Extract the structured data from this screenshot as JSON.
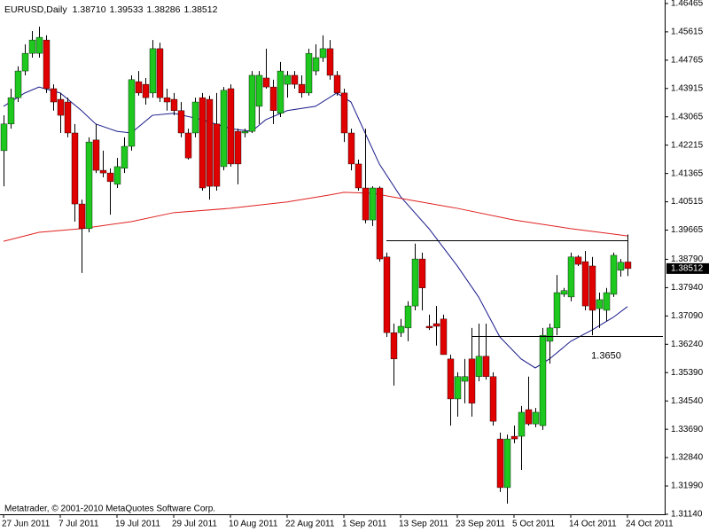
{
  "chart_data": {
    "type": "candlestick",
    "title": "EURUSD,Daily",
    "quote": [
      {
        "value": 1.3871,
        "label": "1.38710"
      },
      1.39533,
      1.38286,
      1.38512
    ],
    "footer": "Metatrader, © 2001-2010 MetaQuotes Software Corp.",
    "categories": [
      "27 Jun 2011",
      null,
      null,
      null,
      null,
      null,
      null,
      null,
      "7 Jul 2011",
      null,
      null,
      null,
      null,
      null,
      null,
      null,
      "19 Jul 2011",
      null,
      null,
      null,
      null,
      null,
      null,
      null,
      "29 Jul 2011",
      null,
      null,
      null,
      null,
      null,
      null,
      null,
      "10 Aug 2011",
      null,
      null,
      null,
      null,
      null,
      null,
      null,
      "22 Aug 2011",
      null,
      null,
      null,
      null,
      null,
      null,
      null,
      "1 Sep 2011",
      null,
      null,
      null,
      null,
      null,
      null,
      null,
      "13 Sep 2011",
      null,
      null,
      null,
      null,
      null,
      null,
      null,
      "23 Sep 2011",
      null,
      null,
      null,
      null,
      null,
      null,
      null,
      "5 Oct 2011",
      null,
      null,
      null,
      null,
      null,
      null,
      null,
      "14 Oct 2011",
      null,
      null,
      null,
      null,
      null,
      null,
      null,
      "24 Oct 2011"
    ],
    "open": [
      1.4205,
      1.4285,
      1.4364,
      1.4444,
      1.4497,
      1.4497,
      1.4537,
      1.4391,
      1.4359,
      1.4351,
      1.4258,
      1.4045,
      1.3971,
      1.4237,
      1.4146,
      1.4138,
      1.4104,
      1.4152,
      1.4218,
      1.4412,
      1.4404,
      1.4378,
      1.4511,
      1.4364,
      1.4359,
      1.4325,
      1.4258,
      1.4258,
      1.4364,
      1.4359,
      1.4285,
      1.4157,
      1.4391,
      1.4263,
      1.4258,
      1.4263,
      1.4338,
      1.4423,
      1.4396,
      1.4317,
      1.4404,
      1.4431,
      1.4404,
      1.4378,
      1.4444,
      1.4484,
      1.4511,
      1.4431,
      1.4378,
      1.4258,
      1.4165,
      1.4093,
      1.3997,
      1.4093,
      1.3886,
      1.3659,
      1.3659,
      1.3673,
      1.3739,
      1.388,
      1.3678,
      1.3686,
      1.37,
      1.358,
      1.346,
      1.3513,
      1.358,
      1.3527,
      1.3588,
      1.3527,
      1.334,
      1.3194,
      1.3348,
      1.3348,
      1.3428,
      1.3385,
      1.338,
      1.3633,
      1.3673,
      1.3774,
      1.3766,
      1.3886,
      1.3872,
      1.3859,
      1.3731,
      1.3726,
      1.3774,
      1.3846,
      1.3871
    ],
    "high": [
      1.4311,
      1.4391,
      1.4458,
      1.4524,
      1.4564,
      1.4577,
      1.4551,
      1.4404,
      1.4378,
      1.4364,
      1.4285,
      1.4058,
      1.4245,
      1.4285,
      1.4205,
      1.4152,
      1.4183,
      1.4245,
      1.4431,
      1.4444,
      1.4423,
      1.4537,
      1.4529,
      1.4391,
      1.4378,
      1.4351,
      1.4271,
      1.4364,
      1.4378,
      1.437,
      1.4378,
      1.4396,
      1.4404,
      1.4271,
      1.4271,
      1.4444,
      1.4444,
      1.4511,
      1.4418,
      1.4471,
      1.4444,
      1.4444,
      1.4431,
      1.4511,
      1.4524,
      1.4551,
      1.4537,
      1.4444,
      1.4391,
      1.4271,
      1.4178,
      1.4271,
      1.4098,
      1.4098,
      1.3899,
      1.3686,
      1.37,
      1.3753,
      1.3926,
      1.3899,
      1.3713,
      1.3739,
      1.3713,
      1.3593,
      1.354,
      1.358,
      1.3673,
      1.3686,
      1.3686,
      1.354,
      1.3359,
      1.3353,
      1.338,
      1.3439,
      1.3527,
      1.3433,
      1.3673,
      1.3686,
      1.3832,
      1.3793,
      1.3899,
      1.3891,
      1.3904,
      1.3886,
      1.3779,
      1.3793,
      1.3899,
      1.388,
      1.39533
    ],
    "low": [
      1.4098,
      1.4271,
      1.4351,
      1.4431,
      1.4484,
      1.4484,
      1.4378,
      1.4325,
      1.4258,
      1.4245,
      1.3992,
      1.3838,
      1.396,
      1.4138,
      1.4125,
      1.4013,
      1.4093,
      1.4138,
      1.4205,
      1.437,
      1.4343,
      1.4364,
      1.4351,
      1.4325,
      1.4311,
      1.4245,
      1.4178,
      1.4245,
      1.4085,
      1.4058,
      1.4085,
      1.4146,
      1.4157,
      1.4104,
      1.4245,
      1.4258,
      1.4285,
      1.4391,
      1.4285,
      1.4306,
      1.4364,
      1.4391,
      1.4364,
      1.437,
      1.4431,
      1.4471,
      1.4418,
      1.437,
      1.4231,
      1.4146,
      1.4085,
      1.3987,
      1.3979,
      1.3872,
      1.3646,
      1.35,
      1.3646,
      1.3633,
      1.3726,
      1.3726,
      1.3667,
      1.362,
      1.3593,
      1.338,
      1.3407,
      1.3447,
      1.3407,
      1.3513,
      1.3518,
      1.338,
      1.3181,
      1.3146,
      1.3327,
      1.3247,
      1.338,
      1.3375,
      1.3367,
      1.3566,
      1.3651,
      1.3766,
      1.3753,
      1.3859,
      1.3726,
      1.3651,
      1.3673,
      1.3694,
      1.3766,
      1.3827,
      1.38286
    ],
    "close": [
      1.4285,
      1.4364,
      1.4444,
      1.4497,
      1.4537,
      1.4545,
      1.4391,
      1.4351,
      1.4311,
      1.4258,
      1.4045,
      1.3971,
      1.4231,
      1.4146,
      1.4138,
      1.4112,
      1.4157,
      1.4218,
      1.4418,
      1.4378,
      1.4364,
      1.4511,
      1.4364,
      1.4351,
      1.4325,
      1.4258,
      1.4183,
      1.4351,
      1.4093,
      1.4098,
      1.4098,
      1.4386,
      1.4165,
      1.4165,
      1.4263,
      1.4431,
      1.4431,
      1.4396,
      1.4325,
      1.4444,
      1.4431,
      1.4404,
      1.4378,
      1.4497,
      1.4484,
      1.4511,
      1.4431,
      1.4378,
      1.4258,
      1.4165,
      1.4093,
      1.3997,
      1.4093,
      1.388,
      1.3659,
      1.358,
      1.3678,
      1.3739,
      1.388,
      1.3793,
      1.3673,
      1.3678,
      1.3593,
      1.346,
      1.3527,
      1.3527,
      1.3447,
      1.3588,
      1.3527,
      1.3393,
      1.3194,
      1.334,
      1.334,
      1.342,
      1.3385,
      1.342,
      1.3651,
      1.3673,
      1.3779,
      1.3785,
      1.3886,
      1.3864,
      1.3739,
      1.3726,
      1.3758,
      1.3779,
      1.3891,
      1.387,
      1.38512
    ],
    "up_color": "#1ec81e",
    "down_color": "#e00000",
    "moving_averages": [
      {
        "color": "#1a1a8c",
        "x": [
          0,
          3,
          5,
          8,
          11,
          13,
          16,
          18,
          21,
          24,
          28,
          32,
          35,
          37,
          40,
          44,
          47,
          49,
          51,
          53,
          56,
          60,
          64,
          67,
          70,
          73,
          75,
          77,
          80,
          83,
          86,
          88
        ],
        "values": [
          1.4338,
          1.4378,
          1.4396,
          1.4378,
          1.4325,
          1.4285,
          1.4263,
          1.4258,
          1.4311,
          1.4317,
          1.4298,
          1.4271,
          1.4263,
          1.4298,
          1.4325,
          1.4338,
          1.4378,
          1.4351,
          1.4258,
          1.4165,
          1.4067,
          1.3971,
          1.3859,
          1.3766,
          1.3646,
          1.358,
          1.3553,
          1.358,
          1.3633,
          1.3667,
          1.3705,
          1.3737
        ]
      },
      {
        "color": "#e02020",
        "x": [
          0,
          5,
          11,
          18,
          24,
          32,
          40,
          46,
          48,
          52,
          57,
          64,
          72,
          80,
          87,
          88
        ],
        "values": [
          1.3933,
          1.396,
          1.3971,
          1.3992,
          1.4019,
          1.4032,
          1.4051,
          1.4072,
          1.408,
          1.4077,
          1.4058,
          1.4032,
          1.3997,
          1.3971,
          1.3952,
          1.3949
        ]
      }
    ],
    "levels": [
      {
        "value": 1.3936,
        "x": [
          54,
          88
        ],
        "color": "#000000"
      },
      {
        "value": 1.365,
        "label": "1.3650",
        "x": [
          66,
          93
        ],
        "color": "#000000"
      }
    ],
    "ylim": [
      1.3114,
      1.4657
    ],
    "yticks": [
      1.46465,
      1.45615,
      1.44765,
      1.43915,
      1.43065,
      1.42215,
      1.41365,
      1.40515,
      1.39665,
      {
        "value": 1.3879,
        "label": "1.38790"
      },
      {
        "value": 1.3794,
        "label": "1.37940"
      },
      {
        "value": 1.3709,
        "label": "1.37090"
      },
      {
        "value": 1.3624,
        "label": "1.36240"
      },
      {
        "value": 1.3539,
        "label": "1.35390"
      },
      {
        "value": 1.3454,
        "label": "1.34540"
      },
      {
        "value": 1.3369,
        "label": "1.33690"
      },
      {
        "value": 1.3284,
        "label": "1.32840"
      },
      {
        "value": 1.3199,
        "label": "1.31990"
      },
      {
        "value": 1.3114,
        "label": "1.31140"
      }
    ]
  }
}
